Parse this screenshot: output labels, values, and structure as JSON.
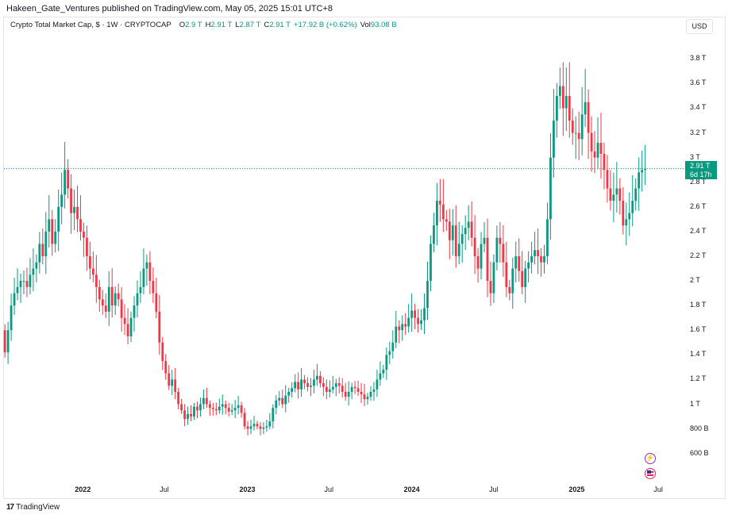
{
  "header": {
    "published": "Hakeen_Gate_Ventures published on TradingView.com, May 05, 2025 15:01 UTC+8"
  },
  "legend": {
    "symbol": "Crypto Total Market Cap, $ · 1W · CRYPTOCAP",
    "o_label": "O",
    "o_value": "2.9 T",
    "h_label": "H",
    "h_value": "2.91 T",
    "l_label": "L",
    "l_value": "2.87 T",
    "c_label": "C",
    "c_value": "2.91 T",
    "change": "+17.92 B (+0.62%)",
    "vol_label": "Vol",
    "vol_value": "93.08 B"
  },
  "currency_button": "USD",
  "price_label": {
    "price": "2.91 T",
    "countdown": "6d 17h"
  },
  "footer": {
    "brand": "TradingView"
  },
  "colors": {
    "up": "#089981",
    "down": "#f23645",
    "price_line": "#089981"
  },
  "chart_data": {
    "type": "candlestick",
    "title": "Crypto Total Market Cap, $ · 1W · CRYPTOCAP",
    "y_unit": "T (trillion USD)",
    "ylim": [
      0.45,
      3.95
    ],
    "yticks": [
      {
        "v": 3.8,
        "label": "3.8 T"
      },
      {
        "v": 3.6,
        "label": "3.6 T"
      },
      {
        "v": 3.4,
        "label": "3.4 T"
      },
      {
        "v": 3.2,
        "label": "3.2 T"
      },
      {
        "v": 3.0,
        "label": "3 T"
      },
      {
        "v": 2.8,
        "label": "2.8 T"
      },
      {
        "v": 2.6,
        "label": "2.6 T"
      },
      {
        "v": 2.4,
        "label": "2.4 T"
      },
      {
        "v": 2.2,
        "label": "2.2 T"
      },
      {
        "v": 2.0,
        "label": "2 T"
      },
      {
        "v": 1.8,
        "label": "1.8 T"
      },
      {
        "v": 1.6,
        "label": "1.6 T"
      },
      {
        "v": 1.4,
        "label": "1.4 T"
      },
      {
        "v": 1.2,
        "label": "1.2 T"
      },
      {
        "v": 1.0,
        "label": "1 T"
      },
      {
        "v": 0.8,
        "label": "800 B"
      },
      {
        "v": 0.6,
        "label": "600 B"
      }
    ],
    "xticks": [
      {
        "date": "2022-01-01",
        "label": "2022",
        "bold": true
      },
      {
        "date": "2022-07-01",
        "label": "Jul",
        "bold": false
      },
      {
        "date": "2023-01-01",
        "label": "2023",
        "bold": true
      },
      {
        "date": "2023-07-01",
        "label": "Jul",
        "bold": false
      },
      {
        "date": "2024-01-01",
        "label": "2024",
        "bold": true
      },
      {
        "date": "2024-07-01",
        "label": "Jul",
        "bold": false
      },
      {
        "date": "2025-01-01",
        "label": "2025",
        "bold": true
      },
      {
        "date": "2025-07-01",
        "label": "Jul",
        "bold": false
      }
    ],
    "x_start": "2021-07-10",
    "x_end": "2025-08-28",
    "candle_start": "2021-07-12",
    "candle_interval_days": 7,
    "last_price": 2.91,
    "closes": [
      1.42,
      1.6,
      1.8,
      1.9,
      1.95,
      2.0,
      2.0,
      1.95,
      2.05,
      2.1,
      2.15,
      2.3,
      2.2,
      2.4,
      2.5,
      2.3,
      2.4,
      2.6,
      2.7,
      2.9,
      2.75,
      2.55,
      2.6,
      2.5,
      2.4,
      2.35,
      2.2,
      2.1,
      2.05,
      1.95,
      1.85,
      1.8,
      1.75,
      1.95,
      1.8,
      1.9,
      1.85,
      1.7,
      1.65,
      1.55,
      1.7,
      1.8,
      1.9,
      1.95,
      2.1,
      2.15,
      2.0,
      1.9,
      1.75,
      1.5,
      1.35,
      1.25,
      1.15,
      1.2,
      1.1,
      1.0,
      0.95,
      0.88,
      0.92,
      0.9,
      0.98,
      0.95,
      1.0,
      1.05,
      1.0,
      0.97,
      0.96,
      0.95,
      0.98,
      1.0,
      0.97,
      0.94,
      0.95,
      0.97,
      0.99,
      0.93,
      0.82,
      0.8,
      0.82,
      0.84,
      0.82,
      0.8,
      0.81,
      0.82,
      0.86,
      0.97,
      1.03,
      1.05,
      1.0,
      1.07,
      1.1,
      1.13,
      1.18,
      1.12,
      1.2,
      1.17,
      1.14,
      1.15,
      1.2,
      1.23,
      1.17,
      1.14,
      1.1,
      1.12,
      1.14,
      1.17,
      1.15,
      1.1,
      1.06,
      1.1,
      1.14,
      1.13,
      1.1,
      1.08,
      1.04,
      1.06,
      1.1,
      1.12,
      1.2,
      1.25,
      1.28,
      1.4,
      1.43,
      1.5,
      1.63,
      1.6,
      1.65,
      1.63,
      1.7,
      1.76,
      1.7,
      1.65,
      1.68,
      1.78,
      2.0,
      2.3,
      2.45,
      2.65,
      2.62,
      2.5,
      2.48,
      2.33,
      2.45,
      2.2,
      2.3,
      2.38,
      2.43,
      2.48,
      2.35,
      2.2,
      2.1,
      2.3,
      2.35,
      2.0,
      1.9,
      2.15,
      2.35,
      2.3,
      2.15,
      1.95,
      1.9,
      2.1,
      2.2,
      2.08,
      1.95,
      2.1,
      2.15,
      2.2,
      2.25,
      2.2,
      2.15,
      2.2,
      2.5,
      3.0,
      3.3,
      3.5,
      3.58,
      3.4,
      3.5,
      3.3,
      3.2,
      3.2,
      3.15,
      3.35,
      3.45,
      3.2,
      3.05,
      3.0,
      3.12,
      3.03,
      2.9,
      2.75,
      2.65,
      2.7,
      2.75,
      2.65,
      2.45,
      2.5,
      2.55,
      2.65,
      2.75,
      2.88,
      2.9,
      2.91
    ],
    "opens": [
      1.6,
      1.42,
      1.6,
      1.8,
      1.9,
      1.95,
      2.0,
      2.0,
      1.95,
      2.05,
      2.1,
      2.15,
      2.3,
      2.2,
      2.4,
      2.5,
      2.3,
      2.4,
      2.6,
      2.7,
      2.9,
      2.75,
      2.55,
      2.6,
      2.5,
      2.4,
      2.35,
      2.2,
      2.1,
      2.05,
      1.95,
      1.85,
      1.8,
      1.75,
      1.95,
      1.8,
      1.9,
      1.85,
      1.7,
      1.65,
      1.55,
      1.7,
      1.8,
      1.9,
      1.95,
      2.1,
      2.15,
      2.0,
      1.9,
      1.75,
      1.5,
      1.35,
      1.25,
      1.15,
      1.2,
      1.1,
      1.0,
      0.95,
      0.88,
      0.92,
      0.9,
      0.98,
      0.95,
      1.0,
      1.05,
      1.0,
      0.97,
      0.96,
      0.95,
      0.98,
      1.0,
      0.97,
      0.94,
      0.95,
      0.97,
      0.99,
      0.93,
      0.82,
      0.8,
      0.82,
      0.84,
      0.82,
      0.8,
      0.81,
      0.82,
      0.86,
      0.97,
      1.03,
      1.05,
      1.0,
      1.07,
      1.1,
      1.13,
      1.18,
      1.12,
      1.2,
      1.17,
      1.14,
      1.15,
      1.2,
      1.23,
      1.17,
      1.14,
      1.1,
      1.12,
      1.14,
      1.17,
      1.15,
      1.1,
      1.06,
      1.1,
      1.14,
      1.13,
      1.1,
      1.08,
      1.04,
      1.06,
      1.1,
      1.12,
      1.2,
      1.25,
      1.28,
      1.4,
      1.43,
      1.5,
      1.63,
      1.6,
      1.65,
      1.63,
      1.7,
      1.76,
      1.7,
      1.65,
      1.68,
      1.78,
      2.0,
      2.3,
      2.45,
      2.65,
      2.62,
      2.5,
      2.48,
      2.33,
      2.45,
      2.2,
      2.3,
      2.38,
      2.43,
      2.48,
      2.35,
      2.2,
      2.1,
      2.3,
      2.35,
      2.0,
      1.9,
      2.15,
      2.35,
      2.3,
      2.15,
      1.95,
      1.9,
      2.1,
      2.2,
      2.08,
      1.95,
      2.1,
      2.15,
      2.2,
      2.25,
      2.2,
      2.15,
      2.2,
      2.5,
      3.0,
      3.3,
      3.5,
      3.58,
      3.4,
      3.5,
      3.3,
      3.2,
      3.2,
      3.15,
      3.35,
      3.45,
      3.2,
      3.05,
      3.0,
      3.12,
      3.03,
      2.9,
      2.75,
      2.65,
      2.7,
      2.75,
      2.65,
      2.45,
      2.5,
      2.55,
      2.65,
      2.75,
      2.88,
      2.9
    ]
  }
}
